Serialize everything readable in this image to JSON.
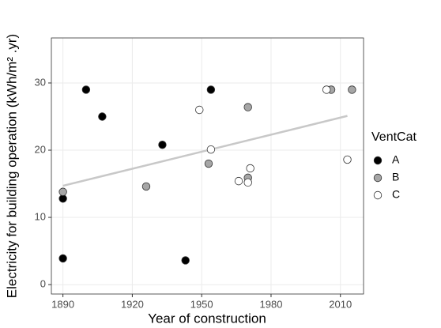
{
  "chart_data": {
    "type": "scatter",
    "x_label": "Year of construction",
    "y_label": "Electricity for building operation (kWh/m² .yr)",
    "legend_title": "VentCat",
    "xlim": [
      1885,
      2020
    ],
    "xticks": [
      1890,
      1920,
      1950,
      1980,
      2010
    ],
    "ylim": [
      -1.4,
      36.7
    ],
    "yticks": [
      0,
      10,
      20,
      30
    ],
    "grid": true,
    "legend": "right",
    "series": [
      {
        "name": "A",
        "color": "#000000",
        "x": [
          1890,
          1890,
          1900,
          1907,
          1933,
          1943,
          1954
        ],
        "values": [
          3.9,
          12.8,
          29,
          25,
          20.8,
          3.6,
          29
        ]
      },
      {
        "name": "B",
        "color": "#a6a6a6",
        "x": [
          1890,
          1926,
          1953,
          1970,
          1970,
          2006,
          2015
        ],
        "values": [
          13.8,
          14.6,
          18,
          26.4,
          15.9,
          29,
          29
        ]
      },
      {
        "name": "C",
        "color": "#ffffff",
        "x": [
          1949,
          1954,
          1966,
          1970,
          1971,
          2004,
          2013
        ],
        "values": [
          26,
          20.1,
          15.4,
          15.2,
          17.3,
          29,
          18.6
        ]
      }
    ],
    "trend_line": {
      "x": [
        1890,
        2013
      ],
      "values": [
        14.7,
        25.1
      ],
      "color": "#c8c8c8"
    }
  }
}
